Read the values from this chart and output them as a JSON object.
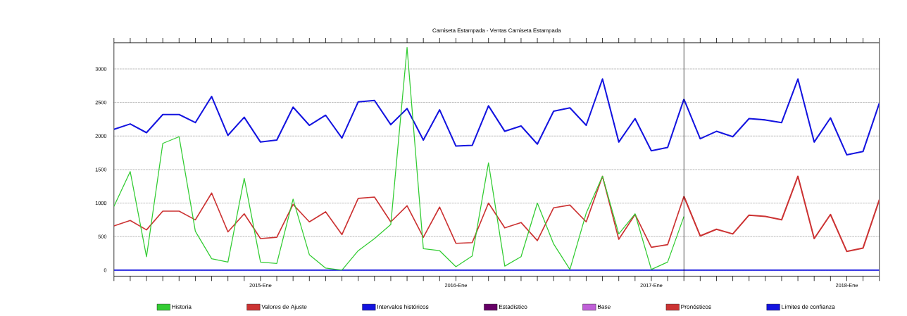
{
  "chart_data": {
    "type": "line",
    "title": "Camiseta Estampada - Ventas Camiseta Estampada",
    "x": [
      "2014-04",
      "2014-05",
      "2014-06",
      "2014-07",
      "2014-08",
      "2014-09",
      "2014-10",
      "2014-11",
      "2014-12",
      "2015-01",
      "2015-02",
      "2015-03",
      "2015-04",
      "2015-05",
      "2015-06",
      "2015-07",
      "2015-08",
      "2015-09",
      "2015-10",
      "2015-11",
      "2015-12",
      "2016-01",
      "2016-02",
      "2016-03",
      "2016-04",
      "2016-05",
      "2016-06",
      "2016-07",
      "2016-08",
      "2016-09",
      "2016-10",
      "2016-11",
      "2016-12",
      "2017-01",
      "2017-02",
      "2017-03",
      "2017-04",
      "2017-05",
      "2017-06",
      "2017-07",
      "2017-08",
      "2017-09",
      "2017-10",
      "2017-11",
      "2017-12",
      "2018-01",
      "2018-02",
      "2018-03"
    ],
    "xlim": [
      "2014-04",
      "2018-03"
    ],
    "xticks": [
      {
        "value": "2014-04",
        "label": null
      },
      {
        "value": "2014-05",
        "label": null
      },
      {
        "value": "2014-06",
        "label": null
      },
      {
        "value": "2014-07",
        "label": null
      },
      {
        "value": "2014-08",
        "label": null
      },
      {
        "value": "2014-09",
        "label": null
      },
      {
        "value": "2014-10",
        "label": null
      },
      {
        "value": "2014-11",
        "label": null
      },
      {
        "value": "2014-12",
        "label": null
      },
      {
        "value": "2015-01",
        "label": "2015-Ene"
      },
      {
        "value": "2015-02",
        "label": null
      },
      {
        "value": "2015-03",
        "label": null
      },
      {
        "value": "2015-04",
        "label": null
      },
      {
        "value": "2015-05",
        "label": null
      },
      {
        "value": "2015-06",
        "label": null
      },
      {
        "value": "2015-07",
        "label": null
      },
      {
        "value": "2015-08",
        "label": null
      },
      {
        "value": "2015-09",
        "label": null
      },
      {
        "value": "2015-10",
        "label": null
      },
      {
        "value": "2015-11",
        "label": null
      },
      {
        "value": "2015-12",
        "label": null
      },
      {
        "value": "2016-01",
        "label": "2016-Ene"
      },
      {
        "value": "2016-02",
        "label": null
      },
      {
        "value": "2016-03",
        "label": null
      },
      {
        "value": "2016-04",
        "label": null
      },
      {
        "value": "2016-05",
        "label": null
      },
      {
        "value": "2016-06",
        "label": null
      },
      {
        "value": "2016-07",
        "label": null
      },
      {
        "value": "2016-08",
        "label": null
      },
      {
        "value": "2016-09",
        "label": null
      },
      {
        "value": "2016-10",
        "label": null
      },
      {
        "value": "2016-11",
        "label": null
      },
      {
        "value": "2016-12",
        "label": null
      },
      {
        "value": "2017-01",
        "label": "2017-Ene"
      },
      {
        "value": "2017-02",
        "label": null
      },
      {
        "value": "2017-03",
        "label": null
      },
      {
        "value": "2017-04",
        "label": null
      },
      {
        "value": "2017-05",
        "label": null
      },
      {
        "value": "2017-06",
        "label": null
      },
      {
        "value": "2017-07",
        "label": null
      },
      {
        "value": "2017-08",
        "label": null
      },
      {
        "value": "2017-09",
        "label": null
      },
      {
        "value": "2017-10",
        "label": null
      },
      {
        "value": "2017-11",
        "label": null
      },
      {
        "value": "2017-12",
        "label": null
      },
      {
        "value": "2018-01",
        "label": "2018-Ene"
      },
      {
        "value": "2018-02",
        "label": null
      },
      {
        "value": "2018-03",
        "label": null
      }
    ],
    "ylim": [
      -90,
      3390
    ],
    "yticks": [
      0,
      500,
      1000,
      1500,
      2000,
      2500,
      3000
    ],
    "grid": "y",
    "legend": "bottom",
    "ref_lines": [
      {
        "axis": "x",
        "value": "2017-03",
        "color": "#000000"
      }
    ],
    "series": [
      {
        "name": "Historia",
        "color": "#33cc33",
        "values": [
          950,
          1470,
          200,
          1890,
          1990,
          580,
          170,
          120,
          1370,
          120,
          100,
          1060,
          230,
          30,
          0,
          290,
          470,
          680,
          3320,
          320,
          290,
          50,
          210,
          1600,
          60,
          200,
          1000,
          390,
          10,
          850,
          1400,
          540,
          840,
          10,
          120,
          800,
          null,
          null,
          null,
          null,
          null,
          null,
          null,
          null,
          null,
          null,
          null,
          null
        ]
      },
      {
        "name": "Valores de Ajuste",
        "color": "#cc3333",
        "values": [
          660,
          740,
          600,
          880,
          880,
          750,
          1150,
          570,
          840,
          470,
          490,
          980,
          720,
          870,
          530,
          1070,
          1090,
          720,
          960,
          490,
          940,
          400,
          410,
          1000,
          630,
          710,
          440,
          930,
          970,
          720,
          1400,
          460,
          830,
          340,
          380,
          1100,
          null,
          null,
          null,
          null,
          null,
          null,
          null,
          null,
          null,
          null,
          null,
          null
        ]
      },
      {
        "name": "Intervalos históricos",
        "color": "#1414e0",
        "values": [
          2100,
          2180,
          2050,
          2320,
          2320,
          2200,
          2590,
          2010,
          2280,
          1910,
          1940,
          2430,
          2160,
          2310,
          1970,
          2510,
          2530,
          2170,
          2410,
          1940,
          2390,
          1850,
          1860,
          2450,
          2070,
          2150,
          1880,
          2370,
          2420,
          2160,
          2850,
          1910,
          2260,
          1780,
          1830,
          2550,
          null,
          null,
          null,
          null,
          null,
          null,
          null,
          null,
          null,
          null,
          null,
          null
        ]
      },
      {
        "name": "Estadístico",
        "color": "#660066",
        "values": [
          null,
          null,
          null,
          null,
          null,
          null,
          null,
          null,
          null,
          null,
          null,
          null,
          null,
          null,
          null,
          null,
          null,
          null,
          null,
          null,
          null,
          null,
          null,
          null,
          null,
          null,
          null,
          null,
          null,
          null,
          null,
          null,
          null,
          null,
          null,
          null,
          null,
          null,
          null,
          null,
          null,
          null,
          null,
          null,
          null,
          null,
          null,
          null
        ]
      },
      {
        "name": "Base",
        "color": "#c060d8",
        "values": [
          null,
          null,
          null,
          null,
          null,
          null,
          null,
          null,
          null,
          null,
          null,
          null,
          null,
          null,
          null,
          null,
          null,
          null,
          null,
          null,
          null,
          null,
          null,
          null,
          null,
          null,
          null,
          null,
          null,
          null,
          null,
          null,
          null,
          null,
          null,
          null,
          null,
          null,
          null,
          null,
          null,
          null,
          null,
          null,
          null,
          null,
          null,
          null
        ]
      },
      {
        "name": "Pronósticos",
        "color": "#cc3333",
        "values": [
          null,
          null,
          null,
          null,
          null,
          null,
          null,
          null,
          null,
          null,
          null,
          null,
          null,
          null,
          null,
          null,
          null,
          null,
          null,
          null,
          null,
          null,
          null,
          null,
          null,
          null,
          null,
          null,
          null,
          null,
          null,
          null,
          null,
          null,
          null,
          1100,
          510,
          610,
          540,
          820,
          800,
          750,
          1400,
          470,
          830,
          280,
          330,
          1050
        ]
      },
      {
        "name": "Límites de confianza",
        "color": "#1414e0",
        "values": [
          null,
          null,
          null,
          null,
          null,
          null,
          null,
          null,
          null,
          null,
          null,
          null,
          null,
          null,
          null,
          null,
          null,
          null,
          null,
          null,
          null,
          null,
          null,
          null,
          null,
          null,
          null,
          null,
          null,
          null,
          null,
          null,
          null,
          null,
          null,
          2550,
          1960,
          2070,
          1990,
          2260,
          2240,
          2200,
          2850,
          1910,
          2270,
          1720,
          1770,
          2490
        ]
      },
      {
        "color": "#1414e0",
        "values": [
          0,
          0,
          0,
          0,
          0,
          0,
          0,
          0,
          0,
          0,
          0,
          0,
          0,
          0,
          0,
          0,
          0,
          0,
          0,
          0,
          0,
          0,
          0,
          0,
          0,
          0,
          0,
          0,
          0,
          0,
          0,
          0,
          0,
          0,
          0,
          0,
          0,
          0,
          0,
          0,
          0,
          0,
          0,
          0,
          0,
          0,
          0,
          0
        ]
      }
    ]
  }
}
